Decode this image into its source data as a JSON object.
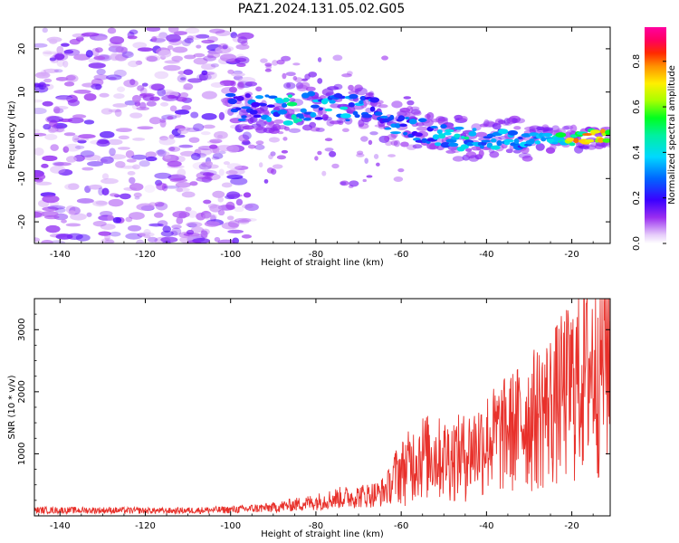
{
  "figure": {
    "title": "PAZ1.2024.131.05.02.G05"
  },
  "chart_data": [
    {
      "type": "heatmap",
      "title": "PAZ1.2024.131.05.02.G05",
      "xlabel": "Height of straight line (km)",
      "ylabel": "Frequency (Hz)",
      "xlim": [
        -146,
        -11
      ],
      "ylim": [
        -25,
        25
      ],
      "xticks": [
        -140,
        -120,
        -100,
        -80,
        -60,
        -40,
        -20
      ],
      "yticks": [
        -20,
        -10,
        0,
        10,
        20
      ],
      "colorbar": {
        "label": "Normalized spectral amplitude",
        "range": [
          0,
          0.95
        ],
        "ticks": [
          0.0,
          0.2,
          0.4,
          0.6,
          0.8
        ],
        "colormap": "gist_ncar-like (white, violet, blue, cyan, green, yellow, red, magenta)"
      },
      "ridge": {
        "description": "Signal ridge: frequency (Hz) vs height (km), peak normalized amplitude",
        "x": [
          -100,
          -90,
          -85,
          -80,
          -75,
          -70,
          -65,
          -60,
          -55,
          -50,
          -45,
          -40,
          -35,
          -30,
          -25,
          -20,
          -15,
          -11
        ],
        "y": [
          7,
          6,
          6,
          7,
          6,
          6,
          5,
          3,
          1,
          0,
          -1,
          -1,
          -1,
          -1,
          -1,
          -1,
          0,
          0
        ],
        "amplitude": [
          0.25,
          0.35,
          0.5,
          0.35,
          0.4,
          0.35,
          0.3,
          0.3,
          0.3,
          0.4,
          0.45,
          0.4,
          0.35,
          0.35,
          0.4,
          0.7,
          0.85,
          0.9
        ]
      },
      "noise": {
        "x_range": [
          -146,
          -95
        ],
        "y_range": [
          -25,
          25
        ],
        "amplitude": 0.15
      }
    },
    {
      "type": "line",
      "xlabel": "Height of straight line (km)",
      "ylabel": "SNR (10 * v/v)",
      "xlim": [
        -146,
        -11
      ],
      "ylim": [
        0,
        3500
      ],
      "xticks": [
        -140,
        -120,
        -100,
        -80,
        -60,
        -40,
        -20
      ],
      "yticks": [
        1000,
        2000,
        3000
      ],
      "color": "#e8312b",
      "series": [
        {
          "x": [
            -146,
            -130,
            -115,
            -100,
            -90,
            -85,
            -80,
            -75,
            -70,
            -65,
            -60,
            -55,
            -50,
            -45,
            -40,
            -35,
            -30,
            -25,
            -20,
            -15,
            -11
          ],
          "y": [
            100,
            100,
            90,
            110,
            150,
            200,
            250,
            320,
            350,
            400,
            700,
            950,
            900,
            950,
            1150,
            1300,
            1500,
            1700,
            2000,
            2300,
            2600
          ]
        }
      ]
    }
  ]
}
